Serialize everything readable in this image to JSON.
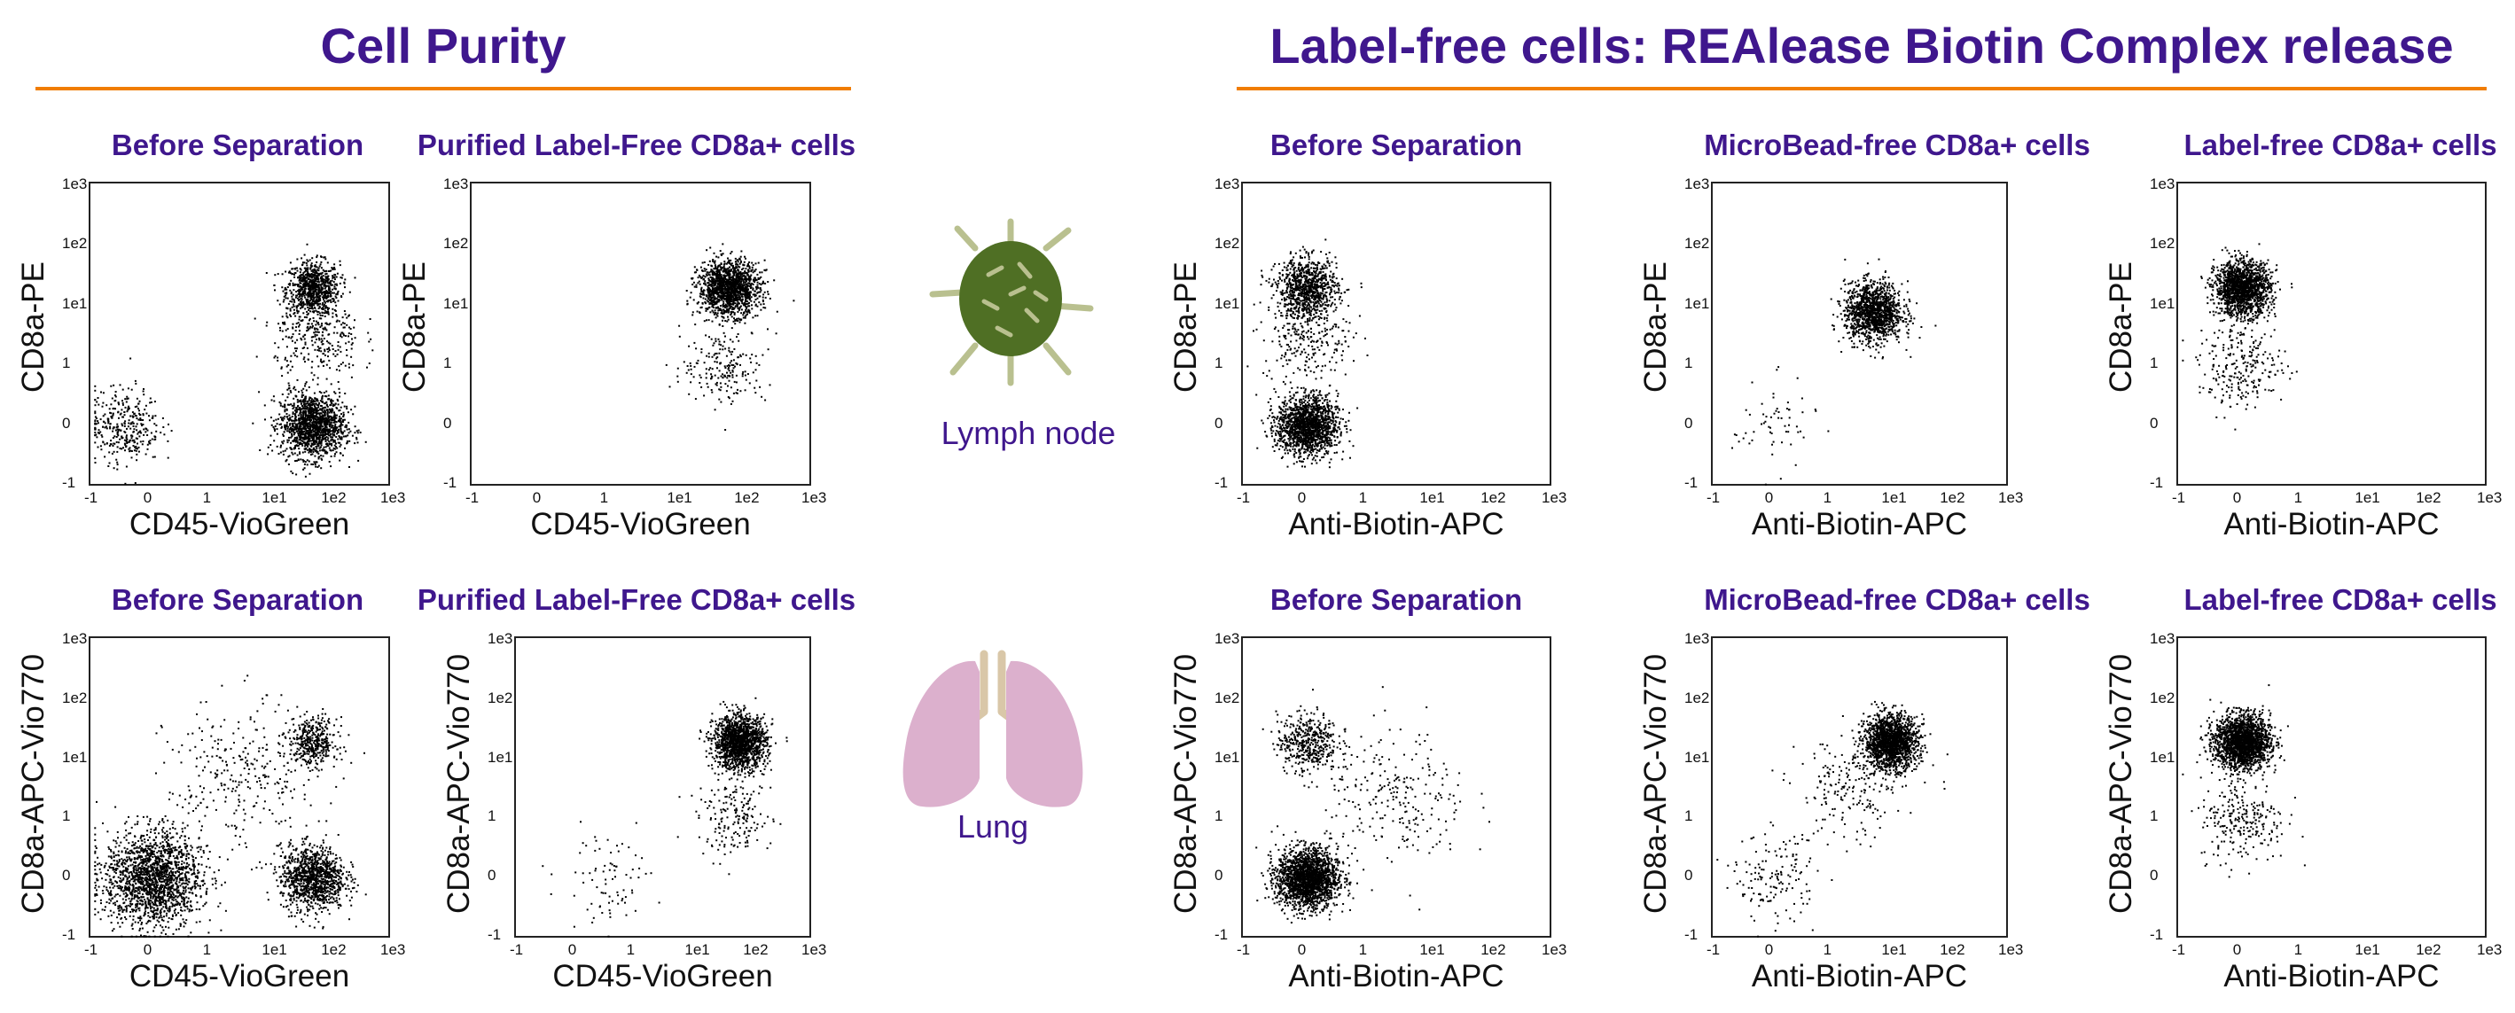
{
  "headers": {
    "left": "Cell Purity",
    "right": "Label-free cells: REAlease Biotin Complex release"
  },
  "organs": {
    "lymph_node": "Lymph node",
    "lung": "Lung"
  },
  "colors": {
    "title": "#3f178d",
    "rule": "#f07d00",
    "lymph_node_fill": "#4f6f24",
    "lymph_node_vessel": "#b9c08f",
    "lung_fill": "#dcb0cd",
    "lung_trachea": "#d9c7a8"
  },
  "chart_data": [
    {
      "id": "p1",
      "type": "scatter",
      "title": "Before Separation",
      "xlabel": "CD45-VioGreen",
      "ylabel": "CD8a-PE",
      "xticks": [
        "-1",
        "0",
        "1",
        "1e1",
        "1e2",
        "1e3"
      ],
      "yticks": [
        "-1",
        "0",
        "1",
        "1e1",
        "1e2",
        "1e3"
      ],
      "xlim": [
        -1,
        1000
      ],
      "ylim": [
        -1,
        1000
      ],
      "clusters": [
        {
          "x": 50,
          "y": 20,
          "n": 800,
          "spread": 0.5
        },
        {
          "x": 50,
          "y": 0,
          "n": 1400,
          "spread": 0.6
        },
        {
          "x": -0.5,
          "y": 0,
          "n": 350,
          "spread": 0.7
        },
        {
          "x": 60,
          "y": 3,
          "n": 300,
          "spread": 0.8
        }
      ]
    },
    {
      "id": "p2",
      "type": "scatter",
      "title": "Purified Label-Free CD8a+ cells",
      "xlabel": "CD45-VioGreen",
      "ylabel": "CD8a-PE",
      "xticks": [
        "-1",
        "0",
        "1",
        "1e1",
        "1e2",
        "1e3"
      ],
      "yticks": [
        "-1",
        "0",
        "1",
        "1e1",
        "1e2",
        "1e3"
      ],
      "xlim": [
        -1,
        1000
      ],
      "ylim": [
        -1,
        1000
      ],
      "clusters": [
        {
          "x": 60,
          "y": 20,
          "n": 1500,
          "spread": 0.5
        },
        {
          "x": 50,
          "y": 1,
          "n": 200,
          "spread": 0.7
        }
      ]
    },
    {
      "id": "p3",
      "type": "scatter",
      "title": "Before Separation",
      "xlabel": "Anti-Biotin-APC",
      "ylabel": "CD8a-PE",
      "xticks": [
        "-1",
        "0",
        "1",
        "1e1",
        "1e2",
        "1e3"
      ],
      "yticks": [
        "-1",
        "0",
        "1",
        "1e1",
        "1e2",
        "1e3"
      ],
      "xlim": [
        -1,
        1000
      ],
      "ylim": [
        -1,
        1000
      ],
      "clusters": [
        {
          "x": 0,
          "y": 20,
          "n": 900,
          "spread": 0.55
        },
        {
          "x": 0,
          "y": 0,
          "n": 1600,
          "spread": 0.55
        },
        {
          "x": 0,
          "y": 3,
          "n": 250,
          "spread": 0.8
        }
      ]
    },
    {
      "id": "p4",
      "type": "scatter",
      "title": "MicroBead-free CD8a+ cells",
      "xlabel": "Anti-Biotin-APC",
      "ylabel": "CD8a-PE",
      "xticks": [
        "-1",
        "0",
        "1",
        "1e1",
        "1e2",
        "1e3"
      ],
      "yticks": [
        "-1",
        "0",
        "1",
        "1e1",
        "1e2",
        "1e3"
      ],
      "xlim": [
        -1,
        1000
      ],
      "ylim": [
        -1,
        1000
      ],
      "clusters": [
        {
          "x": 5,
          "y": 8,
          "n": 1300,
          "spread": 0.55
        },
        {
          "x": 0,
          "y": 0,
          "n": 60,
          "spread": 0.8
        }
      ]
    },
    {
      "id": "p5",
      "type": "scatter",
      "title": "Label-free CD8a+ cells",
      "xlabel": "Anti-Biotin-APC",
      "ylabel": "CD8a-PE",
      "xticks": [
        "-1",
        "0",
        "1",
        "1e1",
        "1e2",
        "1e3"
      ],
      "yticks": [
        "-1",
        "0",
        "1",
        "1e1",
        "1e2",
        "1e3"
      ],
      "xlim": [
        -1,
        1000
      ],
      "ylim": [
        -1,
        1000
      ],
      "clusters": [
        {
          "x": 0,
          "y": 20,
          "n": 1600,
          "spread": 0.5
        },
        {
          "x": 0,
          "y": 1,
          "n": 250,
          "spread": 0.8
        }
      ]
    },
    {
      "id": "p6",
      "type": "scatter",
      "title": "Before Separation",
      "xlabel": "CD45-VioGreen",
      "ylabel": "CD8a-APC-Vio770",
      "xticks": [
        "-1",
        "0",
        "1",
        "1e1",
        "1e2",
        "1e3"
      ],
      "yticks": [
        "-1",
        "0",
        "1",
        "1e1",
        "1e2",
        "1e3"
      ],
      "xlim": [
        -1,
        1000
      ],
      "ylim": [
        -1,
        1000
      ],
      "clusters": [
        {
          "x": 0,
          "y": 0,
          "n": 1800,
          "spread": 0.9
        },
        {
          "x": 50,
          "y": 0,
          "n": 1100,
          "spread": 0.6
        },
        {
          "x": 50,
          "y": 20,
          "n": 400,
          "spread": 0.45
        },
        {
          "x": 3,
          "y": 5,
          "n": 300,
          "spread": 1.4
        }
      ]
    },
    {
      "id": "p7",
      "type": "scatter",
      "title": "Purified Label-Free CD8a+ cells",
      "xlabel": "CD45-VioGreen",
      "ylabel": "CD8a-APC-Vio770",
      "xticks": [
        "-1",
        "0",
        "1",
        "1e1",
        "1e2",
        "1e3"
      ],
      "yticks": [
        "-1",
        "0",
        "1",
        "1e1",
        "1e2",
        "1e3"
      ],
      "xlim": [
        -1,
        1000
      ],
      "ylim": [
        -1,
        1000
      ],
      "clusters": [
        {
          "x": 60,
          "y": 20,
          "n": 1500,
          "spread": 0.5
        },
        {
          "x": 50,
          "y": 1,
          "n": 180,
          "spread": 0.7
        },
        {
          "x": 0.5,
          "y": 0,
          "n": 80,
          "spread": 0.9
        }
      ]
    },
    {
      "id": "p8",
      "type": "scatter",
      "title": "Before Separation",
      "xlabel": "Anti-Biotin-APC",
      "ylabel": "CD8a-APC-Vio770",
      "xticks": [
        "-1",
        "0",
        "1",
        "1e1",
        "1e2",
        "1e3"
      ],
      "yticks": [
        "-1",
        "0",
        "1",
        "1e1",
        "1e2",
        "1e3"
      ],
      "xlim": [
        -1,
        1000
      ],
      "ylim": [
        -1,
        1000
      ],
      "clusters": [
        {
          "x": 0,
          "y": 0,
          "n": 2000,
          "spread": 0.55
        },
        {
          "x": 0,
          "y": 20,
          "n": 450,
          "spread": 0.55
        },
        {
          "x": 3,
          "y": 2,
          "n": 250,
          "spread": 1.3
        }
      ]
    },
    {
      "id": "p9",
      "type": "scatter",
      "title": "MicroBead-free CD8a+ cells",
      "xlabel": "Anti-Biotin-APC",
      "ylabel": "CD8a-APC-Vio770",
      "xticks": [
        "-1",
        "0",
        "1",
        "1e1",
        "1e2",
        "1e3"
      ],
      "yticks": [
        "-1",
        "0",
        "1",
        "1e1",
        "1e2",
        "1e3"
      ],
      "xlim": [
        -1,
        1000
      ],
      "ylim": [
        -1,
        1000
      ],
      "clusters": [
        {
          "x": 10,
          "y": 20,
          "n": 1700,
          "spread": 0.5
        },
        {
          "x": 0,
          "y": 0,
          "n": 150,
          "spread": 0.8
        },
        {
          "x": 2,
          "y": 3,
          "n": 200,
          "spread": 1.0
        }
      ]
    },
    {
      "id": "p10",
      "type": "scatter",
      "title": "Label-free CD8a+ cells",
      "xlabel": "Anti-Biotin-APC",
      "ylabel": "CD8a-APC-Vio770",
      "xticks": [
        "-1",
        "0",
        "1",
        "1e1",
        "1e2",
        "1e3"
      ],
      "yticks": [
        "-1",
        "0",
        "1",
        "1e1",
        "1e2",
        "1e3"
      ],
      "xlim": [
        -1,
        1000
      ],
      "ylim": [
        -1,
        1000
      ],
      "clusters": [
        {
          "x": 0,
          "y": 20,
          "n": 2000,
          "spread": 0.5
        },
        {
          "x": 0,
          "y": 1,
          "n": 250,
          "spread": 0.8
        }
      ]
    }
  ]
}
